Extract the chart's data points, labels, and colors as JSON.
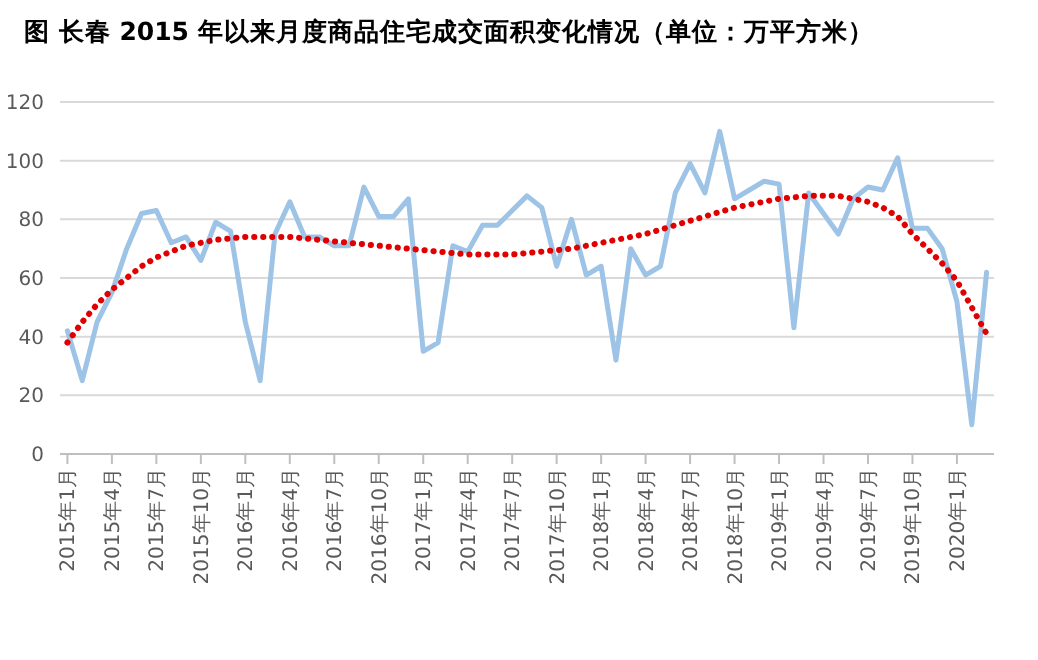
{
  "chart_data": {
    "type": "line",
    "title": "图  长春 2015 年以来月度商品住宅成交面积变化情况（单位：万平方米）",
    "categories": [
      "2015年1月",
      null,
      null,
      "2015年4月",
      null,
      null,
      "2015年7月",
      null,
      null,
      "2015年10月",
      null,
      null,
      "2016年1月",
      null,
      null,
      "2016年4月",
      null,
      null,
      "2016年7月",
      null,
      null,
      "2016年10月",
      null,
      null,
      "2017年1月",
      null,
      null,
      "2017年4月",
      null,
      null,
      "2017年7月",
      null,
      null,
      "2017年10月",
      null,
      null,
      "2018年1月",
      null,
      null,
      "2018年4月",
      null,
      null,
      "2018年7月",
      null,
      null,
      "2018年10月",
      null,
      null,
      "2019年1月",
      null,
      null,
      "2019年4月",
      null,
      null,
      "2019年7月",
      null,
      null,
      "2019年10月",
      null,
      null,
      "2020年1月",
      null,
      null
    ],
    "series": [
      {
        "color": "#9dc3e6",
        "line_style": "solid",
        "values": [
          42,
          25,
          45,
          55,
          70,
          82,
          83,
          72,
          74,
          66,
          79,
          76,
          45,
          25,
          75,
          86,
          74,
          74,
          71,
          71,
          91,
          81,
          81,
          87,
          35,
          38,
          71,
          69,
          78,
          78,
          83,
          88,
          84,
          64,
          80,
          61,
          64,
          32,
          70,
          61,
          64,
          89,
          99,
          89,
          110,
          87,
          90,
          93,
          92,
          43,
          89,
          82,
          75,
          87,
          91,
          90,
          101,
          77,
          77,
          70,
          52,
          10,
          62
        ]
      },
      {
        "type": "line",
        "color": "#e00000",
        "line_style": "dotted",
        "values": [
          38,
          45,
          51,
          56,
          60,
          64,
          67,
          69,
          71,
          72,
          73,
          73.5,
          74,
          74,
          74,
          74,
          73.5,
          73,
          72.5,
          72,
          71.5,
          71,
          70.5,
          70,
          69.5,
          69,
          68.5,
          68,
          68,
          68,
          68,
          68.5,
          69,
          69.5,
          70,
          71,
          72,
          73,
          74,
          75,
          76.5,
          78,
          79.5,
          81,
          82.5,
          84,
          85,
          86,
          87,
          87.5,
          88,
          88,
          88,
          87,
          86,
          84,
          81,
          75,
          70,
          65,
          59,
          50,
          41
        ]
      }
    ],
    "ylim": [
      0,
      120
    ],
    "yticks": [
      0,
      20,
      40,
      60,
      80,
      100,
      120
    ],
    "grid": "y"
  }
}
